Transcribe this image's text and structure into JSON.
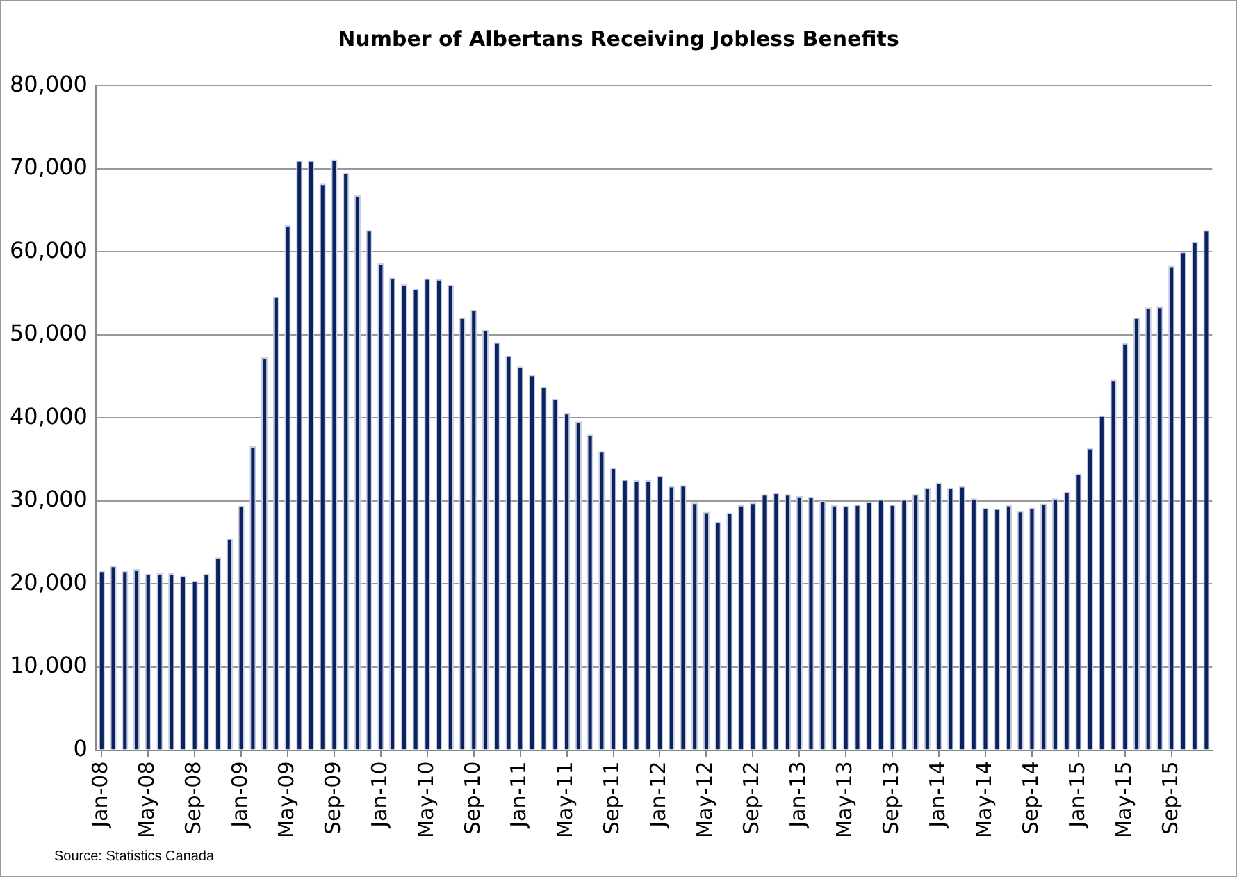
{
  "chart_data": {
    "type": "bar",
    "title": "Number of Albertans Receiving Jobless Benefits",
    "categories": [
      "Jan-08",
      null,
      null,
      null,
      "May-08",
      null,
      null,
      null,
      "Sep-08",
      null,
      null,
      null,
      "Jan-09",
      null,
      null,
      null,
      "May-09",
      null,
      null,
      null,
      "Sep-09",
      null,
      null,
      null,
      "Jan-10",
      null,
      null,
      null,
      "May-10",
      null,
      null,
      null,
      "Sep-10",
      null,
      null,
      null,
      "Jan-11",
      null,
      null,
      null,
      "May-11",
      null,
      null,
      null,
      "Sep-11",
      null,
      null,
      null,
      "Jan-12",
      null,
      null,
      null,
      "May-12",
      null,
      null,
      null,
      "Sep-12",
      null,
      null,
      null,
      "Jan-13",
      null,
      null,
      null,
      "May-13",
      null,
      null,
      null,
      "Sep-13",
      null,
      null,
      null,
      "Jan-14",
      null,
      null,
      null,
      "May-14",
      null,
      null,
      null,
      "Sep-14",
      null,
      null,
      null,
      "Jan-15",
      null,
      null,
      null,
      "May-15",
      null,
      null,
      null,
      "Sep-15",
      null,
      null,
      null
    ],
    "values": [
      21600,
      22200,
      21600,
      21800,
      21200,
      21300,
      21300,
      21000,
      20400,
      21200,
      23200,
      25500,
      29400,
      36600,
      47300,
      54600,
      63200,
      71000,
      71000,
      68200,
      71100,
      69500,
      66800,
      62600,
      58600,
      56900,
      56100,
      55500,
      56800,
      56700,
      56000,
      52100,
      53000,
      50600,
      49100,
      47500,
      46200,
      45200,
      43700,
      42300,
      40600,
      39600,
      38000,
      36000,
      34000,
      32600,
      32500,
      32500,
      33000,
      31800,
      31900,
      29800,
      28700,
      27500,
      28600,
      29500,
      29800,
      30800,
      31000,
      30800,
      30600,
      30500,
      30000,
      29500,
      29400,
      29600,
      29900,
      30200,
      29600,
      30200,
      30800,
      31600,
      32200,
      31600,
      31800,
      30300,
      29200,
      29100,
      29500,
      28800,
      29200,
      29700,
      30300,
      31100,
      33300,
      36400,
      40300,
      44600,
      49000,
      52100,
      53300,
      53400,
      58300,
      60000,
      61200,
      62600
    ],
    "color": "#0b2160",
    "ylim": [
      0,
      80000
    ],
    "yticks": [
      0,
      {
        "value": 10000,
        "label": "10,000"
      },
      {
        "value": 20000,
        "label": "20,000"
      },
      {
        "value": 30000,
        "label": "30,000"
      },
      {
        "value": 40000,
        "label": "40,000"
      },
      {
        "value": 50000,
        "label": "50,000"
      },
      {
        "value": 60000,
        "label": "60,000"
      },
      {
        "value": 70000,
        "label": "70,000"
      },
      {
        "value": 80000,
        "label": "80,000"
      }
    ],
    "grid": "y",
    "annotations": [
      "Source:  Statistics Canada"
    ]
  }
}
